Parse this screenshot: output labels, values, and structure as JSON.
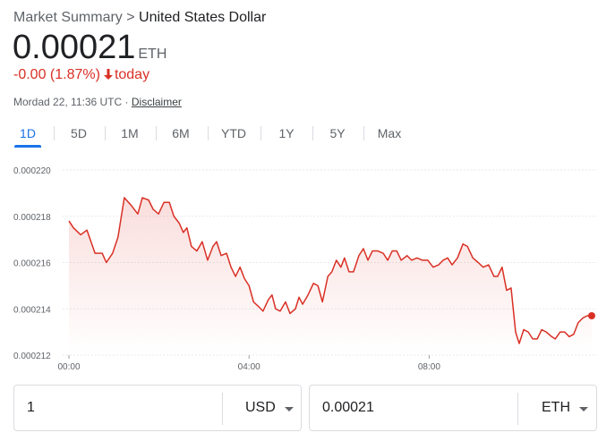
{
  "header": {
    "breadcrumb_root": "Market Summary",
    "breadcrumb_separator": ">",
    "breadcrumb_current": "United States Dollar",
    "price": "0.00021",
    "unit": "ETH",
    "change": "-0.00 (1.87%)",
    "change_period": "today",
    "timestamp": "Mordad 22, 11:36 UTC ·",
    "disclaimer": "Disclaimer"
  },
  "tabs": [
    "1D",
    "5D",
    "1M",
    "6M",
    "YTD",
    "1Y",
    "5Y",
    "Max"
  ],
  "converter": {
    "from_amount": "1",
    "from_currency": "USD",
    "to_amount": "0.00021",
    "to_currency": "ETH"
  },
  "chart_data": {
    "type": "line",
    "color": "#d93025",
    "grid": true,
    "x": [
      0,
      0.1,
      0.26,
      0.4,
      0.58,
      0.74,
      0.83,
      0.97,
      1.09,
      1.23,
      1.37,
      1.53,
      1.63,
      1.77,
      1.87,
      1.99,
      2.11,
      2.23,
      2.33,
      2.45,
      2.54,
      2.62,
      2.72,
      2.84,
      2.96,
      3.08,
      3.2,
      3.28,
      3.38,
      3.5,
      3.6,
      3.7,
      3.8,
      3.9,
      4.0,
      4.1,
      4.21,
      4.31,
      4.43,
      4.51,
      4.59,
      4.69,
      4.81,
      4.91,
      5.03,
      5.11,
      5.19,
      5.31,
      5.43,
      5.53,
      5.63,
      5.75,
      5.84,
      5.94,
      6.04,
      6.12,
      6.22,
      6.32,
      6.44,
      6.54,
      6.64,
      6.74,
      6.86,
      6.98,
      7.08,
      7.18,
      7.28,
      7.38,
      7.51,
      7.61,
      7.73,
      7.85,
      7.97,
      8.09,
      8.21,
      8.31,
      8.41,
      8.51,
      8.63,
      8.75,
      8.85,
      8.97,
      9.09,
      9.2,
      9.32,
      9.44,
      9.52,
      9.62,
      9.72,
      9.82,
      9.92,
      10.0,
      10.1,
      10.2,
      10.3,
      10.4,
      10.5,
      10.6,
      10.72,
      10.8,
      10.91,
      11.01,
      11.11,
      11.21,
      11.31,
      11.41,
      11.51,
      11.61
    ],
    "values": [
      0.0002178,
      0.0002175,
      0.0002172,
      0.0002174,
      0.0002164,
      0.0002164,
      0.000216,
      0.0002164,
      0.0002171,
      0.0002188,
      0.0002185,
      0.0002181,
      0.0002188,
      0.0002187,
      0.0002183,
      0.0002181,
      0.0002186,
      0.0002186,
      0.000218,
      0.0002177,
      0.0002173,
      0.0002175,
      0.0002167,
      0.0002165,
      0.0002169,
      0.0002161,
      0.0002167,
      0.0002169,
      0.0002163,
      0.0002164,
      0.0002158,
      0.0002154,
      0.0002158,
      0.0002153,
      0.000215,
      0.0002143,
      0.0002141,
      0.0002139,
      0.0002144,
      0.0002146,
      0.000214,
      0.0002139,
      0.0002143,
      0.0002138,
      0.000214,
      0.0002145,
      0.0002142,
      0.0002146,
      0.0002151,
      0.000215,
      0.0002143,
      0.0002154,
      0.0002156,
      0.0002161,
      0.0002158,
      0.0002162,
      0.0002156,
      0.0002156,
      0.0002163,
      0.0002166,
      0.0002161,
      0.0002165,
      0.0002165,
      0.0002164,
      0.0002161,
      0.0002165,
      0.0002165,
      0.0002161,
      0.0002163,
      0.0002161,
      0.0002162,
      0.0002161,
      0.0002161,
      0.0002158,
      0.0002159,
      0.0002161,
      0.0002162,
      0.0002159,
      0.0002162,
      0.0002168,
      0.0002167,
      0.0002162,
      0.000216,
      0.0002158,
      0.0002159,
      0.0002154,
      0.0002154,
      0.0002158,
      0.0002148,
      0.0002149,
      0.000213,
      0.0002125,
      0.0002131,
      0.000213,
      0.0002127,
      0.0002127,
      0.0002131,
      0.000213,
      0.0002128,
      0.0002127,
      0.000213,
      0.000213,
      0.0002128,
      0.0002129,
      0.0002134,
      0.0002136,
      0.0002137,
      0.0002137
    ],
    "xlim": [
      0,
      11.73
    ],
    "xticks": [
      {
        "value": 0,
        "label": "00:00"
      },
      {
        "value": 4,
        "label": "04:00"
      },
      {
        "value": 8,
        "label": "08:00"
      }
    ],
    "ylim": [
      0.000212,
      0.00022
    ],
    "yticks": [
      0.000212,
      0.000214,
      0.000216,
      0.000218,
      {
        "value": 0.00022,
        "label": "0.000220"
      }
    ]
  }
}
